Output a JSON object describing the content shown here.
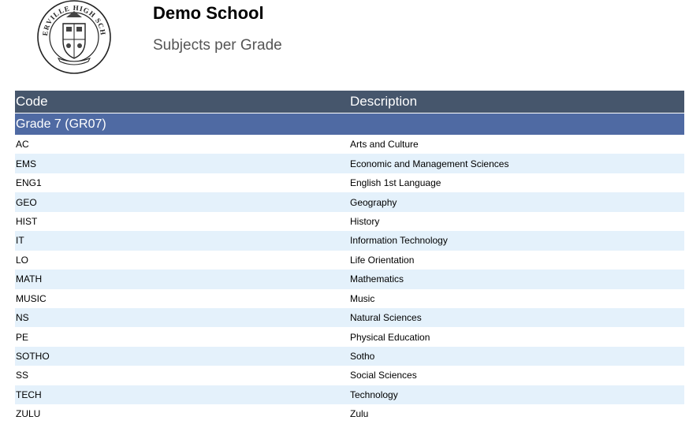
{
  "header": {
    "school_name": "Demo School",
    "report_title": "Subjects per Grade",
    "logo": {
      "top_text": "WATERVILLE HIGH SCHOOL",
      "icon": "school-crest"
    }
  },
  "table": {
    "columns": [
      "Code",
      "Description"
    ],
    "group_label": "Grade 7 (GR07)",
    "rows": [
      {
        "code": "AC",
        "description": "Arts and Culture"
      },
      {
        "code": "EMS",
        "description": "Economic and Management Sciences"
      },
      {
        "code": "ENG1",
        "description": "English 1st Language"
      },
      {
        "code": "GEO",
        "description": "Geography"
      },
      {
        "code": "HIST",
        "description": "History"
      },
      {
        "code": "IT",
        "description": "Information Technology"
      },
      {
        "code": "LO",
        "description": "Life Orientation"
      },
      {
        "code": "MATH",
        "description": "Mathematics"
      },
      {
        "code": "MUSIC",
        "description": "Music"
      },
      {
        "code": "NS",
        "description": "Natural Sciences"
      },
      {
        "code": "PE",
        "description": "Physical Education"
      },
      {
        "code": "SOTHO",
        "description": "Sotho"
      },
      {
        "code": "SS",
        "description": "Social Sciences"
      },
      {
        "code": "TECH",
        "description": "Technology"
      },
      {
        "code": "ZULU",
        "description": "Zulu"
      }
    ]
  },
  "colors": {
    "header_bg": "#46566c",
    "group_bg": "#4f6aa3",
    "alt_row_bg": "#e4f1fb"
  }
}
